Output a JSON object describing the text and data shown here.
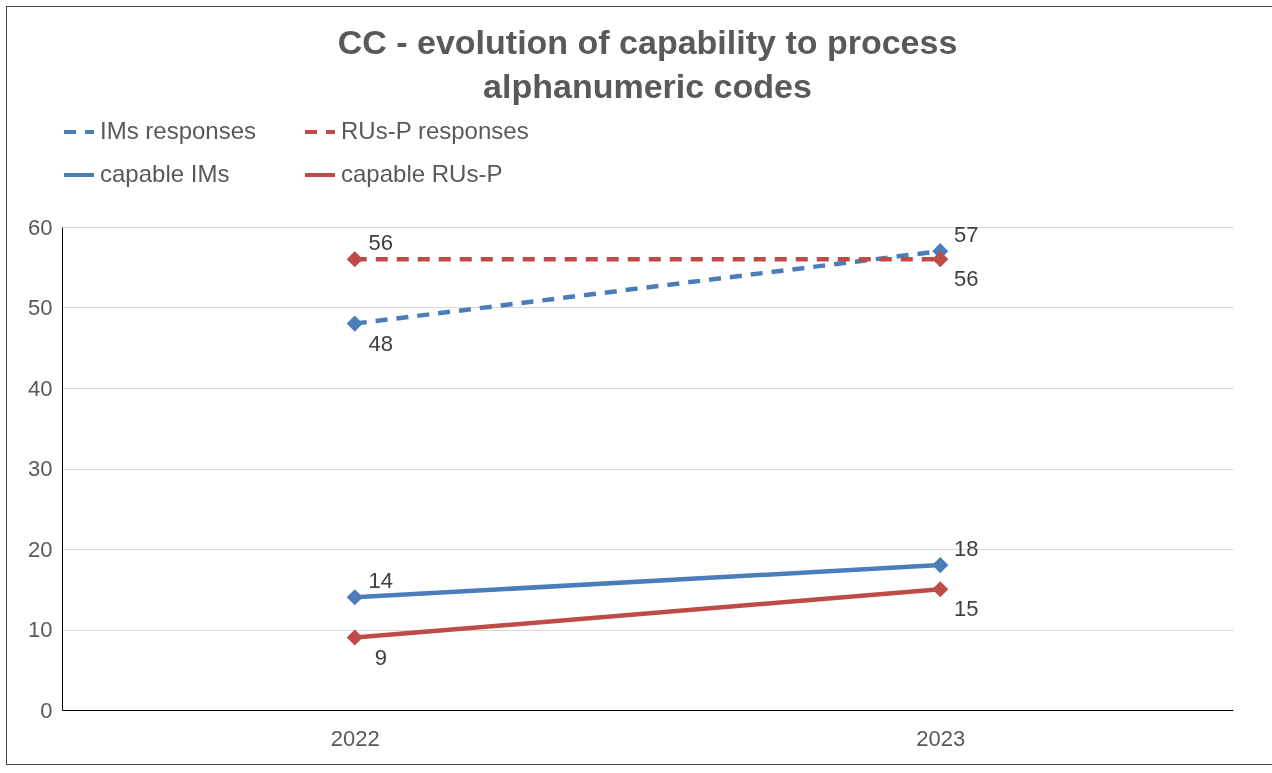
{
  "chart_data": {
    "type": "line",
    "title": "CC - evolution of capability to process alphanumeric codes",
    "categories": [
      "2022",
      "2023"
    ],
    "series": [
      {
        "name": "IMs responses",
        "color": "#4a7ebb",
        "line_style": "dashed",
        "values": [
          48,
          57
        ]
      },
      {
        "name": "RUs-P responses",
        "color": "#be4b48",
        "line_style": "dashed",
        "values": [
          56,
          56
        ]
      },
      {
        "name": "capable IMs",
        "color": "#4a7ebb",
        "line_style": "solid",
        "values": [
          14,
          18
        ]
      },
      {
        "name": "capable RUs-P",
        "color": "#be4b48",
        "line_style": "solid",
        "values": [
          9,
          15
        ]
      }
    ],
    "ylim": [
      0,
      60
    ],
    "yticks": [
      0,
      10,
      20,
      30,
      40,
      50,
      60
    ],
    "grid": "y",
    "legend": "top",
    "marker": "diamond",
    "data_labels": true
  }
}
